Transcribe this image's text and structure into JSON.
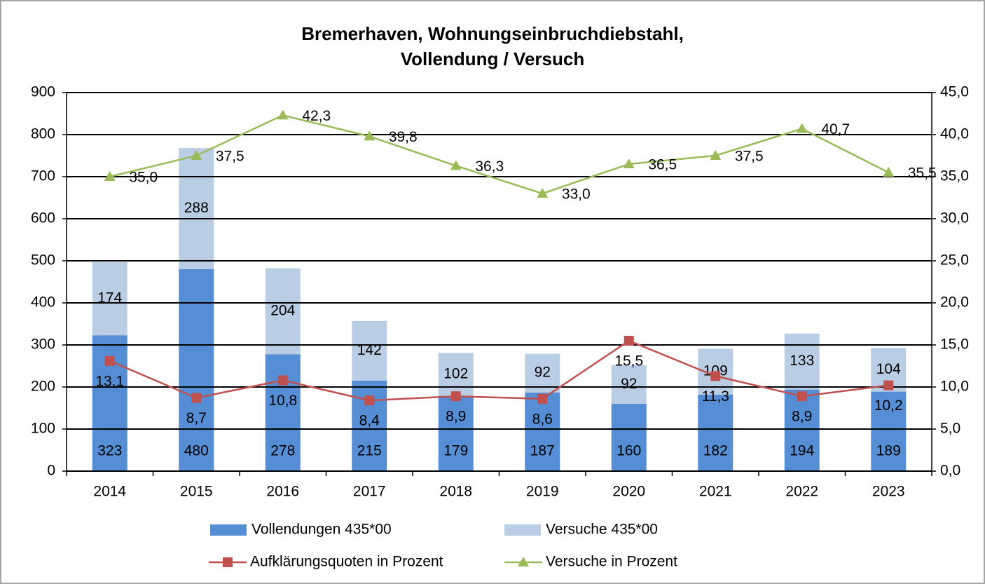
{
  "chart_data": {
    "type": "bar-line",
    "title": [
      "Bremerhaven, Wohnungseinbruchdiebstahl,",
      "Vollendung / Versuch"
    ],
    "categories": [
      "2014",
      "2015",
      "2016",
      "2017",
      "2018",
      "2019",
      "2020",
      "2021",
      "2022",
      "2023"
    ],
    "series": [
      {
        "name": "Vollendungen 435*00",
        "type": "bar",
        "color": "#558ed5",
        "values": [
          323,
          480,
          278,
          215,
          179,
          187,
          160,
          182,
          194,
          189
        ]
      },
      {
        "name": "Versuche 435*00",
        "type": "bar",
        "color": "#b9cde5",
        "values": [
          174,
          288,
          204,
          142,
          102,
          92,
          92,
          109,
          133,
          104
        ]
      },
      {
        "name": "Aufklärungsquoten in Prozent",
        "type": "line",
        "axis": "y2",
        "marker": "square",
        "color": "#c0504d",
        "values": [
          13.1,
          8.7,
          10.8,
          8.4,
          8.9,
          8.6,
          15.5,
          11.3,
          8.9,
          10.2
        ],
        "value_labels": [
          "13,1",
          "8,7",
          "10,8",
          "8,4",
          "8,9",
          "8,6",
          "15,5",
          "11,3",
          "8,9",
          "10,2"
        ]
      },
      {
        "name": "Versuche in Prozent",
        "type": "line",
        "axis": "y2",
        "marker": "triangle",
        "color": "#9bbb59",
        "values": [
          35.0,
          37.5,
          42.3,
          39.8,
          36.3,
          33.0,
          36.5,
          37.5,
          40.7,
          35.5
        ],
        "value_labels": [
          "35,0",
          "37,5",
          "42,3",
          "39,8",
          "36,3",
          "33,0",
          "36,5",
          "37,5",
          "40,7",
          "35,5"
        ]
      }
    ],
    "ylim": [
      0,
      900
    ],
    "yticks": [
      0,
      100,
      200,
      300,
      400,
      500,
      600,
      700,
      800,
      900
    ],
    "y2lim": [
      0,
      45
    ],
    "y2ticks": [
      {
        "value": 0,
        "label": "0,0"
      },
      {
        "value": 5,
        "label": "5,0"
      },
      {
        "value": 10,
        "label": "10,0"
      },
      {
        "value": 15,
        "label": "15,0"
      },
      {
        "value": 20,
        "label": "20,0"
      },
      {
        "value": 25,
        "label": "25,0"
      },
      {
        "value": 30,
        "label": "30,0"
      },
      {
        "value": 35,
        "label": "35,0"
      },
      {
        "value": 40,
        "label": "40,0"
      },
      {
        "value": 45,
        "label": "45,0"
      }
    ],
    "grid": true,
    "legend": "bottom"
  }
}
